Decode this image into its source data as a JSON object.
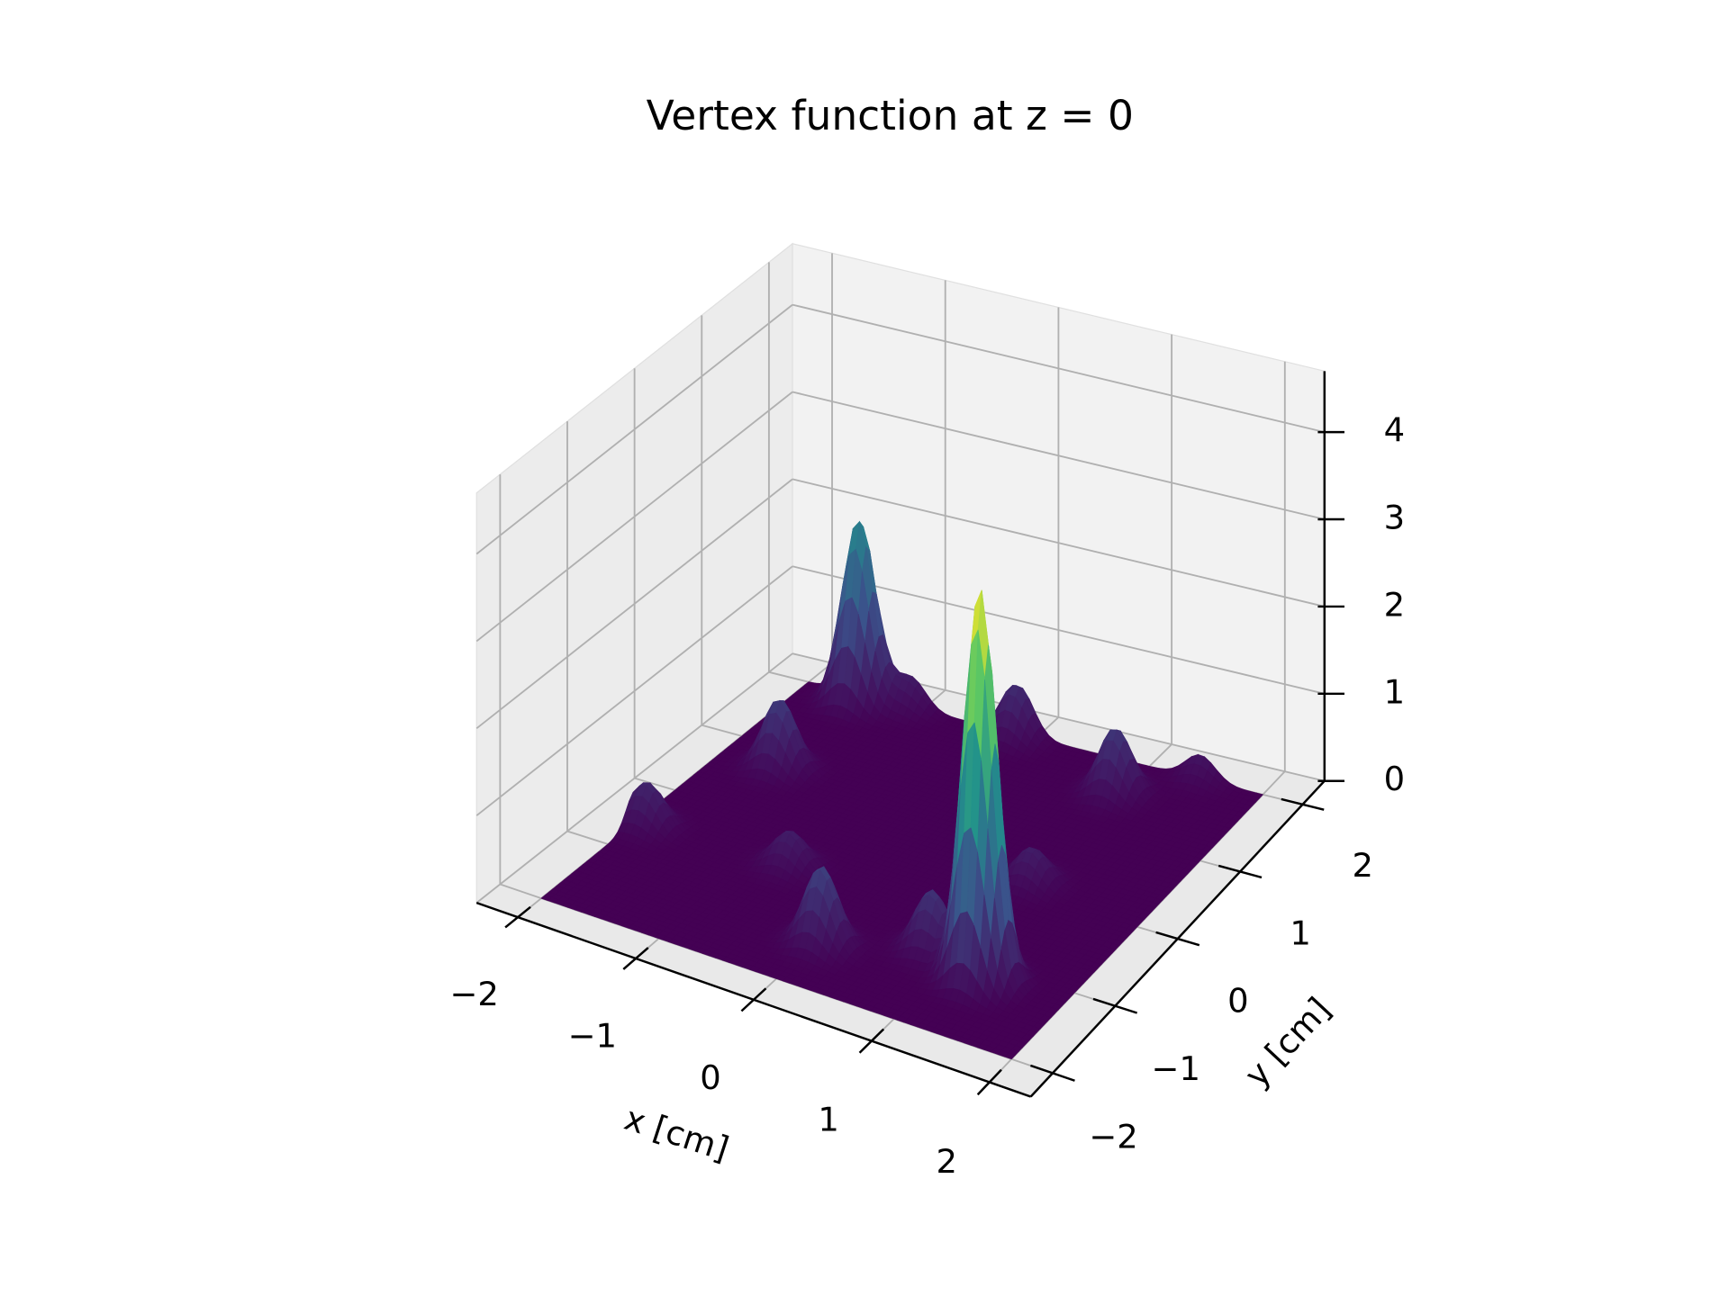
{
  "chart_data": {
    "type": "surface",
    "title": "Vertex function at z = 0",
    "xlabel": "x [cm]",
    "ylabel": "y [cm]",
    "colormap": "viridis",
    "grid": true,
    "xlim": [
      -2.35,
      2.35
    ],
    "ylim": [
      -2.35,
      2.35
    ],
    "zlim": [
      0,
      4.7
    ],
    "xticks": [
      {
        "value": -2,
        "label": "−2"
      },
      {
        "value": -1,
        "label": "−1"
      },
      0,
      1,
      2
    ],
    "yticks": [
      {
        "value": -2,
        "label": "−2"
      },
      {
        "value": -1,
        "label": "−1"
      },
      0,
      1,
      2
    ],
    "zticks": [
      0,
      1,
      2,
      3,
      4
    ],
    "peaks": [
      {
        "x": 1.3,
        "y": -1.2,
        "z": 4.5
      },
      {
        "x": -1.5,
        "y": 1.9,
        "z": 2.1
      },
      {
        "x": 0.05,
        "y": -1.4,
        "z": 0.9
      },
      {
        "x": -1.5,
        "y": 0.7,
        "z": 0.8
      },
      {
        "x": -1.9,
        "y": -0.6,
        "z": 0.5
      },
      {
        "x": 0.95,
        "y": 1.55,
        "z": 0.75
      },
      {
        "x": -0.15,
        "y": 1.95,
        "z": 0.6
      },
      {
        "x": -1.1,
        "y": 2.0,
        "z": 0.35
      },
      {
        "x": -0.7,
        "y": -0.55,
        "z": 0.4
      },
      {
        "x": 1.0,
        "y": 0.15,
        "z": 0.4
      },
      {
        "x": 1.45,
        "y": 2.05,
        "z": 0.3
      },
      {
        "x": 0.8,
        "y": -1.05,
        "z": 0.7
      }
    ]
  }
}
